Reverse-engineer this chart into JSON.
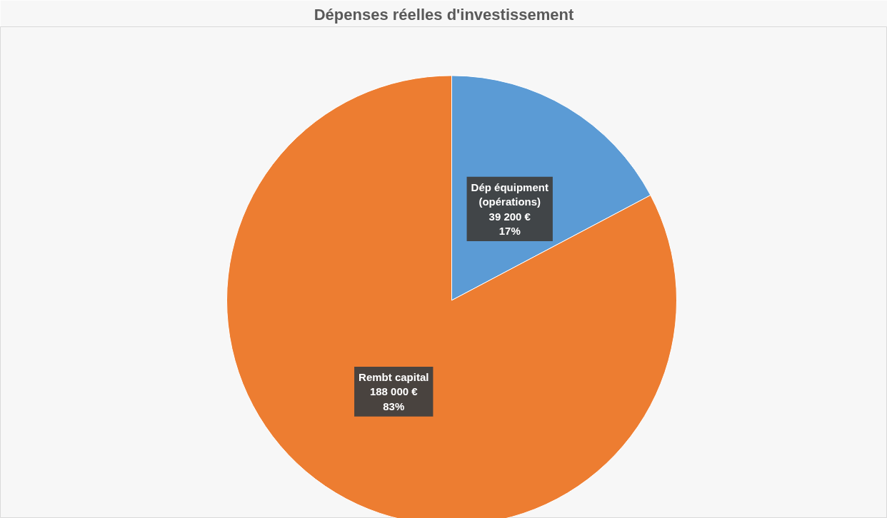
{
  "chart_data": {
    "type": "pie",
    "title": "Dépenses réelles d'investissement",
    "categories": [
      "Dép équipment\n(opérations)",
      "Rembt capital"
    ],
    "values": [
      39200,
      188000
    ],
    "colors": [
      "#5b9bd5",
      "#ed7d31"
    ],
    "value_labels": [
      "39 200 €\n17%",
      "188 000 €\n83%"
    ],
    "legend": false
  }
}
